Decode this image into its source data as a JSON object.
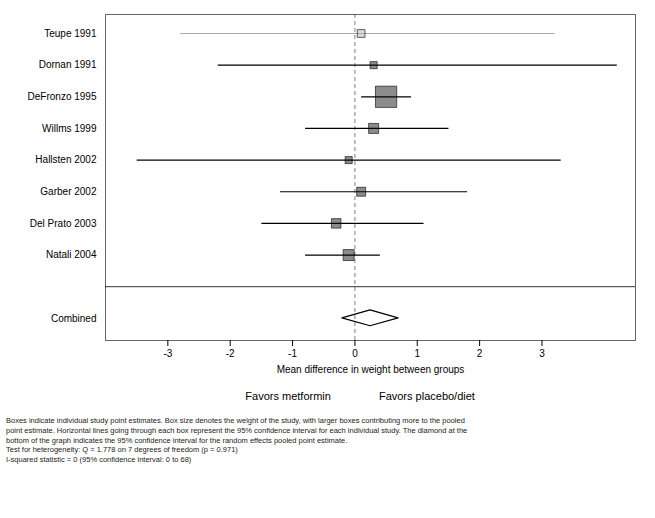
{
  "chart_data": {
    "type": "forest",
    "xlabel": "Mean difference in weight between groups",
    "xlim": [
      -4.0,
      4.5
    ],
    "xticks": [
      -3,
      -2,
      -1,
      0,
      1,
      2,
      3
    ],
    "studies": [
      {
        "name": "Teupe 1991",
        "mean": 0.1,
        "ci_low": -2.8,
        "ci_high": 3.2,
        "weight": 0.06,
        "color": "#aaaaaa"
      },
      {
        "name": "Dornan 1991",
        "mean": 0.3,
        "ci_low": -2.2,
        "ci_high": 4.2,
        "weight": 0.05,
        "color": "#000000"
      },
      {
        "name": "DeFronzo 1995",
        "mean": 0.5,
        "ci_low": 0.1,
        "ci_high": 0.9,
        "weight": 0.45,
        "color": "#000000"
      },
      {
        "name": "Willms 1999",
        "mean": 0.3,
        "ci_low": -0.8,
        "ci_high": 1.5,
        "weight": 0.1,
        "color": "#000000"
      },
      {
        "name": "Hallsten 2002",
        "mean": -0.1,
        "ci_low": -3.5,
        "ci_high": 3.3,
        "weight": 0.05,
        "color": "#000000"
      },
      {
        "name": "Garber 2002",
        "mean": 0.1,
        "ci_low": -1.2,
        "ci_high": 1.8,
        "weight": 0.08,
        "color": "#000000"
      },
      {
        "name": "Del Prato 2003",
        "mean": -0.3,
        "ci_low": -1.5,
        "ci_high": 1.1,
        "weight": 0.09,
        "color": "#000000"
      },
      {
        "name": "Natali 2004",
        "mean": -0.1,
        "ci_low": -0.8,
        "ci_high": 0.4,
        "weight": 0.12,
        "color": "#000000"
      }
    ],
    "combined": {
      "name": "Combined",
      "mean": 0.25,
      "ci_low": -0.2,
      "ci_high": 0.7
    },
    "annotations": [
      "Favors metformin",
      "Favors placebo/diet"
    ],
    "footnote": [
      "Boxes indicate individual study point estimates. Box size denotes the weight of the study, with larger boxes contributing more to the pooled",
      "point estimate.  Horizontal lines going through each box represent the 95% confidence interval for each individual study.  The diamond at the",
      "bottom of the graph indicates the 95% confidence interval for the random effects pooled point estimate.",
      "Test for heterogeneity: Q = 1.778 on 7 degrees of freedom (p = 0.971)",
      "I-squared statistic = 0 (95% confidence interval: 0 to 68)"
    ]
  }
}
